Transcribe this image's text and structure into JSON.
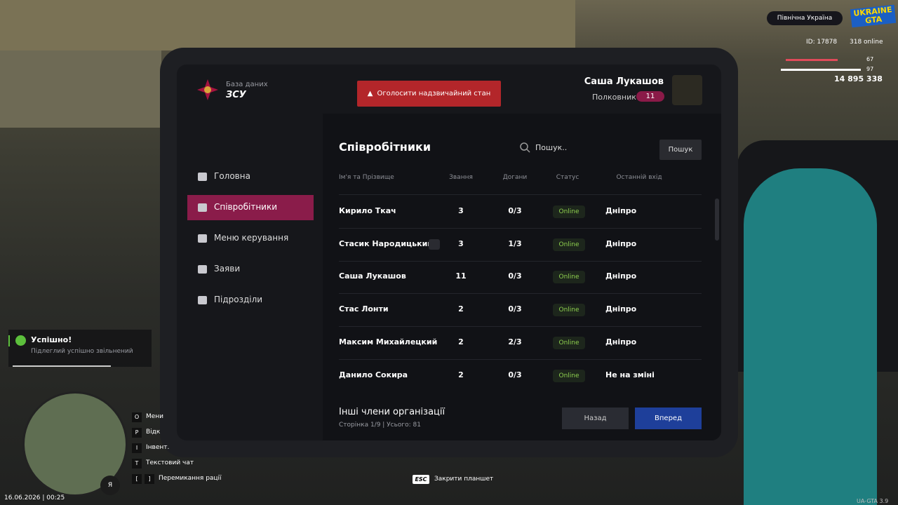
{
  "hud": {
    "server": "Північна Україна",
    "logo_top": "UKRAINE",
    "logo_bottom": "GTA",
    "id": "ID: 17878",
    "online": "318 online",
    "health": 67,
    "armor": 97,
    "money": "14 895 338"
  },
  "tablet": {
    "org_caption": "База даних",
    "org_name": "ЗСУ",
    "alert_button": "Оголосити надзвичайний стан",
    "user_name": "Саша Лукашов",
    "user_rank": "Полковник",
    "user_rank_level": "11",
    "nav": [
      "Головна",
      "Співробітники",
      "Меню керування",
      "Заяви",
      "Підрозділи"
    ],
    "section_title": "Співробітники",
    "search_placeholder": "Пошук..",
    "search_button": "Пошук",
    "table": {
      "headers": [
        "Ім'я та Прізвище",
        "Звання",
        "Догани",
        "Статус",
        "Останній вхід"
      ],
      "rows": [
        [
          "Кирило Ткач",
          "3",
          "0/3",
          "Online",
          "Дніпро"
        ],
        [
          "Стасик Народицький",
          "3",
          "1/3",
          "Online",
          "Дніпро"
        ],
        [
          "Саша Лукашов",
          "11",
          "0/3",
          "Online",
          "Дніпро"
        ],
        [
          "Стас Лонти",
          "2",
          "0/3",
          "Online",
          "Дніпро"
        ],
        [
          "Максим Михайлецкий",
          "2",
          "2/3",
          "Online",
          "Дніпро"
        ],
        [
          "Данило Сокира",
          "2",
          "0/3",
          "Online",
          "Не на зміні"
        ]
      ]
    },
    "footer_title": "Інші члени організації",
    "pagination": "Сторінка 1/9 | Усього: 81",
    "back_button": "Назад",
    "next_button": "Вперед"
  },
  "notification": {
    "title": "Успішно!",
    "message": "Підлеглий успішно звільнений"
  },
  "keybinds": [
    {
      "key": "O",
      "label": "Мени"
    },
    {
      "key": "P",
      "label": "Відк"
    },
    {
      "key": "I",
      "label": "Інвент."
    },
    {
      "key": "T",
      "label": "Текстовий чат"
    },
    {
      "key": "[",
      "key2": "]",
      "label": "Перемикання рації"
    }
  ],
  "mic_key": "Я",
  "datetime": "16.06.2026 | 00:25",
  "esc_key": "ESC",
  "esc_label": "Закрити планшет",
  "version": "UA-GTA 3.9"
}
